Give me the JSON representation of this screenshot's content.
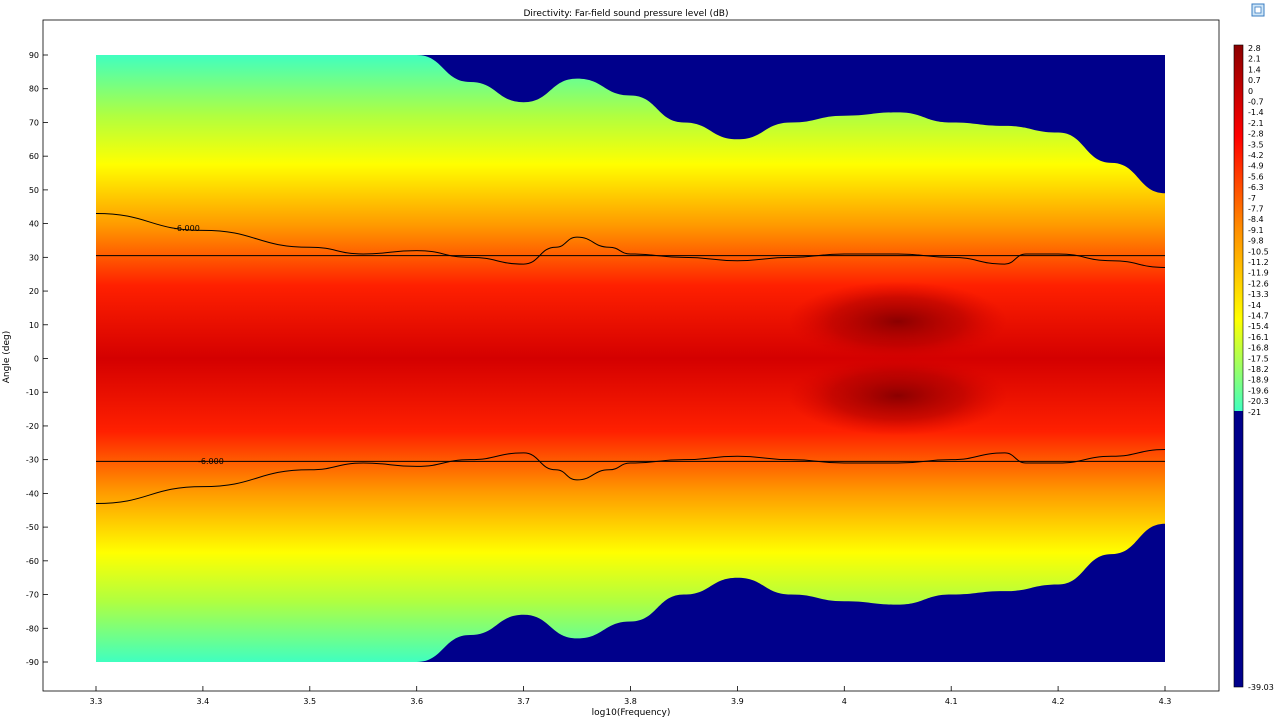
{
  "chart_data": {
    "type": "heatmap",
    "title": "Directivity: Far-field sound pressure level (dB)",
    "xlabel": "log10(Frequency)",
    "ylabel": "Angle (deg)",
    "xlim": [
      3.25,
      4.35
    ],
    "ylim": [
      -100,
      100
    ],
    "x_ticks": [
      3.3,
      3.4,
      3.5,
      3.6,
      3.7,
      3.8,
      3.9,
      4,
      4.1,
      4.2,
      4.3
    ],
    "y_ticks": [
      -90,
      -80,
      -70,
      -60,
      -50,
      -40,
      -30,
      -20,
      -10,
      0,
      10,
      20,
      30,
      40,
      50,
      60,
      70,
      80,
      90
    ],
    "data_range": {
      "x": [
        3.3,
        4.3
      ],
      "y": [
        -90,
        90
      ]
    },
    "colorbar": {
      "colormap": "jet",
      "min": -39.03,
      "max": 2.8,
      "labels": [
        "2.8",
        "2.1",
        "1.4",
        "0.7",
        "0",
        "-0.7",
        "-1.4",
        "-2.1",
        "-2.8",
        "-3.5",
        "-4.2",
        "-4.9",
        "-5.6",
        "-6.3",
        "-7",
        "-7.7",
        "-8.4",
        "-9.1",
        "-9.8",
        "-10.5",
        "-11.2",
        "-11.9",
        "-12.6",
        "-13.3",
        "-14",
        "-14.7",
        "-15.4",
        "-16.1",
        "-16.8",
        "-17.5",
        "-18.2",
        "-18.9",
        "-19.6",
        "-20.3",
        "-21"
      ],
      "min_label": "-39.03"
    },
    "cutoff_level_db": -21,
    "boundary_angle": [
      [
        3.3,
        90
      ],
      [
        3.6,
        90
      ],
      [
        3.65,
        82
      ],
      [
        3.7,
        76
      ],
      [
        3.75,
        83
      ],
      [
        3.8,
        78
      ],
      [
        3.85,
        70
      ],
      [
        3.9,
        65
      ],
      [
        3.95,
        70
      ],
      [
        4.0,
        72
      ],
      [
        4.05,
        73
      ],
      [
        4.1,
        70
      ],
      [
        4.15,
        69
      ],
      [
        4.2,
        67
      ],
      [
        4.25,
        58
      ],
      [
        4.3,
        49
      ]
    ],
    "hotspots": [
      {
        "x": 4.05,
        "y": 11,
        "value": 2.8
      },
      {
        "x": 4.05,
        "y": -11,
        "value": 2.8
      }
    ],
    "contour": {
      "level_label": "-6.000",
      "upper": [
        [
          3.3,
          43
        ],
        [
          3.4,
          38
        ],
        [
          3.5,
          33
        ],
        [
          3.55,
          31
        ],
        [
          3.6,
          32
        ],
        [
          3.65,
          30
        ],
        [
          3.7,
          28
        ],
        [
          3.73,
          33
        ],
        [
          3.75,
          36
        ],
        [
          3.78,
          33
        ],
        [
          3.8,
          31
        ],
        [
          3.85,
          30
        ],
        [
          3.9,
          29
        ],
        [
          3.95,
          30
        ],
        [
          4.0,
          31
        ],
        [
          4.05,
          31
        ],
        [
          4.1,
          30
        ],
        [
          4.15,
          28
        ],
        [
          4.17,
          31
        ],
        [
          4.2,
          31
        ],
        [
          4.25,
          29
        ],
        [
          4.3,
          27
        ]
      ],
      "lower": [
        [
          3.3,
          -43
        ],
        [
          3.4,
          -38
        ],
        [
          3.5,
          -33
        ],
        [
          3.55,
          -31
        ],
        [
          3.6,
          -32
        ],
        [
          3.65,
          -30
        ],
        [
          3.7,
          -28
        ],
        [
          3.73,
          -33
        ],
        [
          3.75,
          -36
        ],
        [
          3.78,
          -33
        ],
        [
          3.8,
          -31
        ],
        [
          3.85,
          -30
        ],
        [
          3.9,
          -29
        ],
        [
          3.95,
          -30
        ],
        [
          4.0,
          -31
        ],
        [
          4.05,
          -31
        ],
        [
          4.1,
          -30
        ],
        [
          4.15,
          -28
        ],
        [
          4.17,
          -31
        ],
        [
          4.2,
          -31
        ],
        [
          4.25,
          -29
        ],
        [
          4.3,
          -27
        ]
      ],
      "reference_angles": [
        30.5,
        -30.5
      ]
    },
    "colors": {
      "background_low": "#00008b",
      "hot": "#8b0000",
      "line": "#000000"
    }
  }
}
